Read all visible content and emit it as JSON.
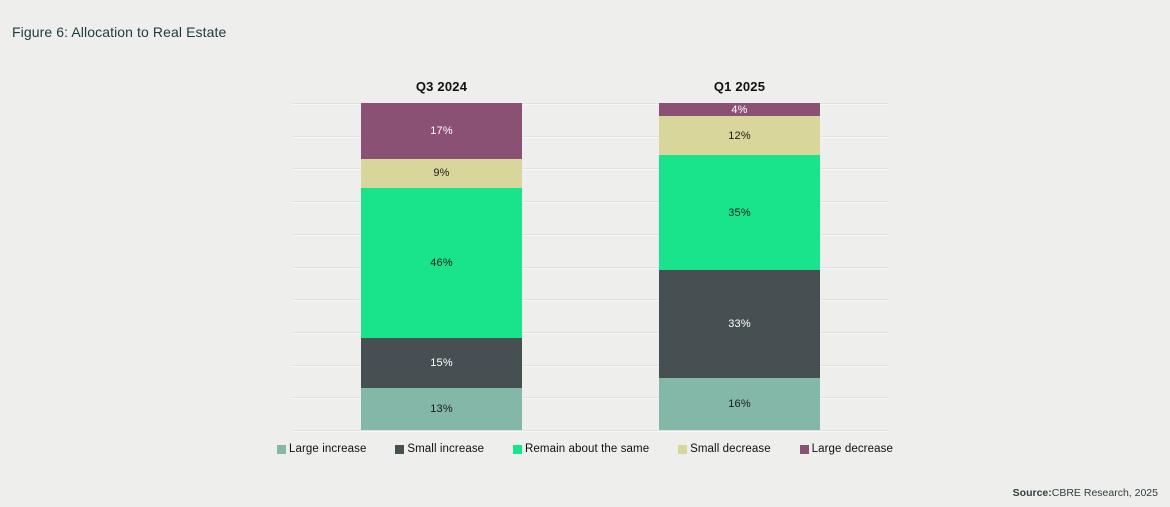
{
  "page": {
    "title": "Figure 6: Allocation to Real Estate",
    "source_label": "Source:",
    "source_text": "CBRE Research, 2025"
  },
  "chart_data": {
    "type": "bar",
    "stacked": true,
    "orientation": "vertical",
    "unit": "%",
    "title": "Figure 6: Allocation to Real Estate",
    "categories": [
      "Q3 2024",
      "Q1 2025"
    ],
    "series": [
      {
        "name": "Large increase",
        "color": "#83b7a8",
        "label_color": "#1a1a1a",
        "values": [
          13,
          16
        ]
      },
      {
        "name": "Small increase",
        "color": "#465053",
        "label_color": "#ffffff",
        "values": [
          15,
          33
        ]
      },
      {
        "name": "Remain about the same",
        "color": "#19e48c",
        "label_color": "#1a1a1a",
        "values": [
          46,
          35
        ]
      },
      {
        "name": "Small decrease",
        "color": "#d9d69b",
        "label_color": "#1a1a1a",
        "values": [
          9,
          12
        ]
      },
      {
        "name": "Large decrease",
        "color": "#8b5175",
        "label_color": "#ffffff",
        "values": [
          17,
          4
        ]
      }
    ],
    "ylim": [
      0,
      100
    ],
    "grid": true,
    "gridline_interval": 10,
    "value_labels": "inside",
    "legend_position": "bottom"
  }
}
